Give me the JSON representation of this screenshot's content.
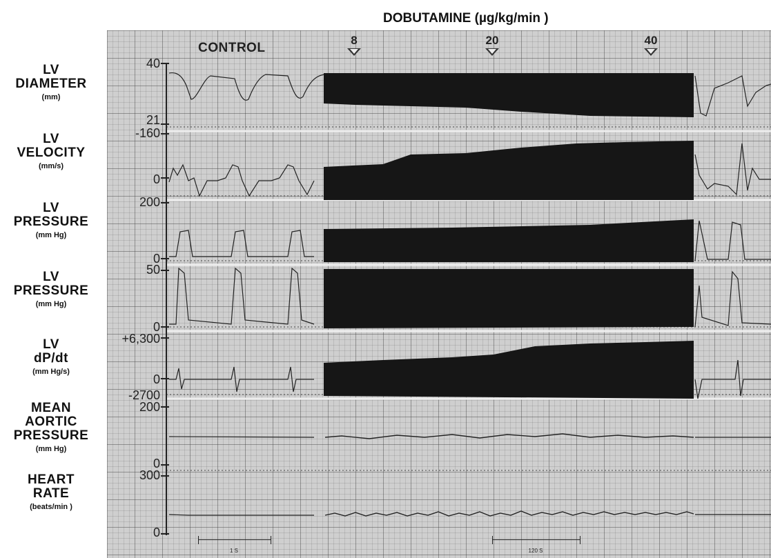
{
  "header": {
    "drug_title": "DOBUTAMINE (µg/kg/min )",
    "control_label": "CONTROL",
    "dose_markers": [
      "8",
      "20",
      "40"
    ]
  },
  "rows": [
    {
      "line1": "LV",
      "line2": "DIAMETER",
      "unit": "(mm)"
    },
    {
      "line1": "LV",
      "line2": "VELOCITY",
      "unit": "(mm/s)"
    },
    {
      "line1": "LV",
      "line2": "PRESSURE",
      "unit": "(mm Hg)"
    },
    {
      "line1": "LV",
      "line2": "PRESSURE",
      "unit": "(mm Hg)"
    },
    {
      "line1": "LV",
      "line2": "dP/dt",
      "unit": "(mm   Hg/s)"
    },
    {
      "line1": "MEAN",
      "line2": "AORTIC",
      "line3": "PRESSURE",
      "unit": "(mm Hg)"
    },
    {
      "line1": "HEART",
      "line2": "RATE",
      "unit": "(beats/min )"
    }
  ],
  "ticks": {
    "diameter_top": "40",
    "diameter_bottom": "21",
    "velocity_top": "-160",
    "velocity_zero": "0",
    "pressure1_top": "200",
    "pressure1_zero": "0",
    "pressure2_top": "50",
    "pressure2_zero": "0",
    "dpdt_top": "+6,300",
    "dpdt_zero": "0",
    "dpdt_bottom": "-2700",
    "aortic_top": "200",
    "aortic_zero": "0",
    "hr_top": "300",
    "hr_zero": "0"
  },
  "scale_bars": {
    "left": "1 S",
    "right": "120 S"
  }
}
